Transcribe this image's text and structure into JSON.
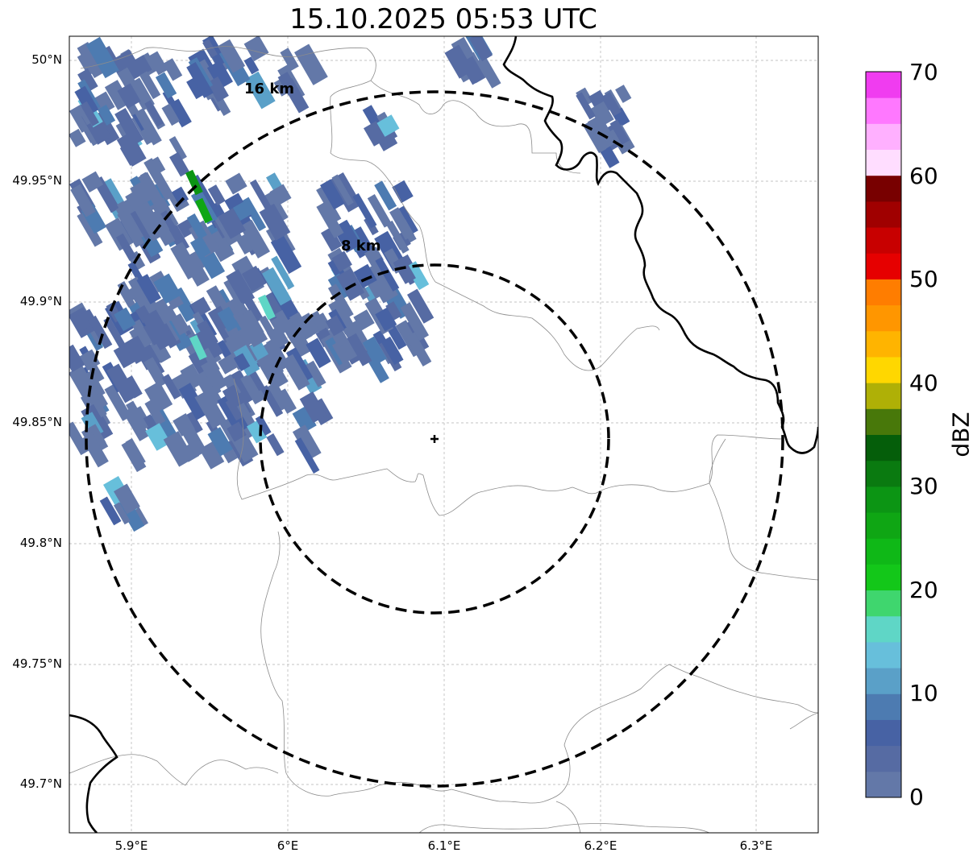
{
  "title": "15.10.2025 05:53 UTC",
  "map": {
    "lon_range": [
      5.86,
      6.34
    ],
    "lat_range": [
      49.68,
      50.01
    ],
    "gridlines": true,
    "x_ticks": [
      "5.9°E",
      "6°E",
      "6.1°E",
      "6.2°E",
      "6.3°E"
    ],
    "y_ticks": [
      "50°N",
      "49.95°N",
      "49.9°N",
      "49.85°N",
      "49.8°N",
      "49.75°N",
      "49.7°N"
    ],
    "center_marker": {
      "lon": 6.096,
      "lat": 49.843,
      "symbol": "plus"
    },
    "range_rings": [
      {
        "label": "8 km",
        "radius_km": 8,
        "style": "dashed"
      },
      {
        "label": "16 km",
        "radius_km": 16,
        "style": "dashed"
      }
    ],
    "layers": [
      "country border (thick black)",
      "admin boundaries (thin grey)",
      "radar reflectivity"
    ]
  },
  "colorbar": {
    "label": "dBZ",
    "min": 0,
    "max": 70,
    "ticks": [
      "0",
      "10",
      "20",
      "30",
      "40",
      "50",
      "60",
      "70"
    ],
    "colors": [
      "#6378a8",
      "#566ba3",
      "#4762a4",
      "#4d7bb1",
      "#5aa0c8",
      "#67bfdb",
      "#5fd6c6",
      "#3fd66e",
      "#13c719",
      "#0fb817",
      "#0fa614",
      "#0c9514",
      "#0a7a10",
      "#055e0a",
      "#48780a",
      "#afb006",
      "#ffd700",
      "#ffb400",
      "#ff9600",
      "#ff7d00",
      "#e60000",
      "#c80000",
      "#a00000",
      "#780000",
      "#ffddff",
      "#ffb0ff",
      "#ff78ff",
      "#f03cf0"
    ]
  }
}
